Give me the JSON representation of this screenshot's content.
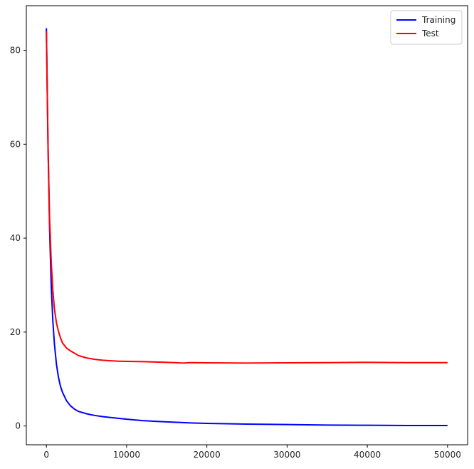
{
  "chart_data": {
    "type": "line",
    "title": "",
    "xlabel": "",
    "ylabel": "",
    "xlim": [
      -2500,
      52500
    ],
    "ylim": [
      -4,
      89.5
    ],
    "grid": false,
    "legend_position": "top-right",
    "x_ticks": [
      0,
      10000,
      20000,
      30000,
      40000,
      50000
    ],
    "y_ticks": [
      0,
      20,
      40,
      60,
      80
    ],
    "series": [
      {
        "name": "Training",
        "color": "#0000ff",
        "x": [
          0,
          200,
          400,
          600,
          800,
          1000,
          1250,
          1500,
          1750,
          2000,
          2500,
          3000,
          3500,
          4000,
          5000,
          6000,
          7000,
          8000,
          10000,
          12000,
          14000,
          16000,
          18000,
          20000,
          25000,
          30000,
          35000,
          40000,
          45000,
          50000
        ],
        "y": [
          84.7,
          60,
          42,
          30,
          22.5,
          17.5,
          13.2,
          10.4,
          8.5,
          7.2,
          5.4,
          4.3,
          3.6,
          3.1,
          2.6,
          2.25,
          2.0,
          1.8,
          1.45,
          1.15,
          0.95,
          0.8,
          0.65,
          0.55,
          0.4,
          0.3,
          0.2,
          0.15,
          0.1,
          0.1
        ]
      },
      {
        "name": "Test",
        "color": "#ff0000",
        "x": [
          0,
          200,
          400,
          600,
          800,
          1000,
          1250,
          1500,
          1750,
          2000,
          2500,
          3000,
          3500,
          4000,
          5000,
          6000,
          7000,
          8000,
          9000,
          10000,
          12000,
          14000,
          16000,
          17000,
          18000,
          20000,
          25000,
          30000,
          35000,
          40000,
          45000,
          50000
        ],
        "y": [
          84.0,
          60,
          44,
          35,
          29,
          25,
          22,
          20.2,
          18.8,
          17.7,
          16.6,
          16.0,
          15.5,
          15.0,
          14.5,
          14.2,
          14.0,
          13.9,
          13.8,
          13.75,
          13.7,
          13.6,
          13.5,
          13.4,
          13.5,
          13.45,
          13.4,
          13.45,
          13.5,
          13.55,
          13.5,
          13.5
        ]
      }
    ]
  }
}
